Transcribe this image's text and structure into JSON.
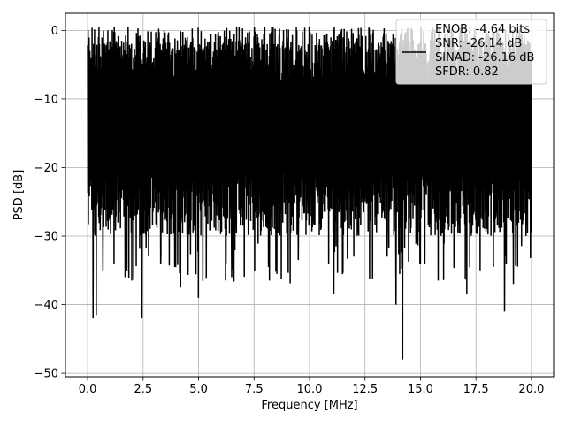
{
  "chart_data": {
    "type": "line",
    "title": "",
    "xlabel": "Frequency [MHz]",
    "ylabel": "PSD [dB]",
    "xlim": [
      -1.0,
      21.0
    ],
    "ylim": [
      -50.5,
      2.5
    ],
    "x_ticks": [
      0.0,
      2.5,
      5.0,
      7.5,
      10.0,
      12.5,
      15.0,
      17.5,
      20.0
    ],
    "x_tick_labels": [
      "0.0",
      "2.5",
      "5.0",
      "7.5",
      "10.0",
      "12.5",
      "15.0",
      "17.5",
      "20.0"
    ],
    "y_ticks": [
      0,
      -10,
      -20,
      -30,
      -40,
      -50
    ],
    "y_tick_labels": [
      "0",
      "−10",
      "−20",
      "−30",
      "−40",
      "−50"
    ],
    "grid": true,
    "legend_position": "top-right",
    "legend_entries": [
      "ENOB: -4.64 bits",
      "SNR: -26.14 dB",
      "SINAD: -26.16 dB",
      "SFDR: 0.82"
    ],
    "series": [
      {
        "color": "#000000",
        "x_range": [
          0.0,
          20.0
        ],
        "approx_band_top_db": -5,
        "approx_band_bottom_db": -25,
        "peaks": [
          {
            "x": 0.02,
            "y": 0.0
          },
          {
            "x": 0.1,
            "y": -3.0
          }
        ],
        "dips": [
          {
            "x": 0.25,
            "y": -42.0
          },
          {
            "x": 0.4,
            "y": -41.5
          },
          {
            "x": 0.7,
            "y": -35.0
          },
          {
            "x": 1.2,
            "y": -34.0
          },
          {
            "x": 1.7,
            "y": -36.0
          },
          {
            "x": 2.0,
            "y": -36.5
          },
          {
            "x": 2.45,
            "y": -42.0
          },
          {
            "x": 3.3,
            "y": -34.0
          },
          {
            "x": 4.2,
            "y": -37.5
          },
          {
            "x": 5.0,
            "y": -39.0
          },
          {
            "x": 6.5,
            "y": -36.0
          },
          {
            "x": 8.2,
            "y": -36.5
          },
          {
            "x": 9.5,
            "y": -33.5
          },
          {
            "x": 11.1,
            "y": -38.5
          },
          {
            "x": 12.0,
            "y": -33.0
          },
          {
            "x": 13.5,
            "y": -33.0
          },
          {
            "x": 13.9,
            "y": -40.0
          },
          {
            "x": 14.2,
            "y": -48.0
          },
          {
            "x": 15.2,
            "y": -34.0
          },
          {
            "x": 17.1,
            "y": -38.5
          },
          {
            "x": 17.7,
            "y": -35.0
          },
          {
            "x": 18.8,
            "y": -41.0
          },
          {
            "x": 19.2,
            "y": -37.0
          }
        ]
      }
    ]
  }
}
